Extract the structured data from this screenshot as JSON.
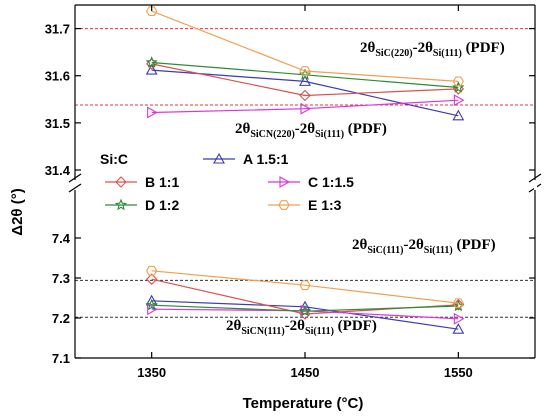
{
  "chart_data": {
    "type": "line",
    "xlabel": "Temperature (°C)",
    "ylabel": "Δ2θ (°)",
    "x": [
      1350,
      1450,
      1550
    ],
    "x_ticks": [
      "1350",
      "1450",
      "1550"
    ],
    "xlim": [
      1300,
      1600
    ],
    "broken_y_axis": true,
    "upper_ylim": [
      31.4,
      31.75
    ],
    "lower_ylim": [
      7.1,
      7.5
    ],
    "upper_y_ticks": [
      "31.4",
      "31.5",
      "31.6",
      "31.7"
    ],
    "lower_y_ticks": [
      "7.1",
      "7.2",
      "7.3",
      "7.4"
    ],
    "legend": {
      "title": "Si:C",
      "placement": "center-left"
    },
    "series": [
      {
        "name": "A 1.5:1",
        "color": "#3b3bb3",
        "marker": "triangle-up",
        "upper": [
          31.612,
          31.588,
          31.515
        ],
        "lower": [
          7.243,
          7.228,
          7.172
        ]
      },
      {
        "name": "B 1:1",
        "color": "#d9534f",
        "marker": "diamond",
        "upper": [
          31.625,
          31.558,
          31.572
        ],
        "lower": [
          7.297,
          7.21,
          7.233
        ]
      },
      {
        "name": "C 1:1.5",
        "color": "#dd33dd",
        "marker": "triangle-right",
        "upper": [
          31.522,
          31.53,
          31.548
        ],
        "lower": [
          7.222,
          7.218,
          7.198
        ]
      },
      {
        "name": "D 1:2",
        "color": "#2e8b3a",
        "marker": "star",
        "upper": [
          31.628,
          31.602,
          31.575
        ],
        "lower": [
          7.232,
          7.217,
          7.23
        ]
      },
      {
        "name": "E  1:3",
        "color": "#f0a050",
        "marker": "hexagon",
        "upper": [
          31.737,
          31.61,
          31.588
        ],
        "lower": [
          7.318,
          7.282,
          7.237
        ]
      }
    ],
    "reference_lines": [
      {
        "panel": "upper",
        "y": 31.7,
        "color": "#ee3333",
        "main": "2θ",
        "sub1": "SiC(220)",
        "mid": "-2θ",
        "sub2": "Si(111)",
        "end": " (PDF)"
      },
      {
        "panel": "upper",
        "y": 31.538,
        "color": "#ee3333",
        "main": "2θ",
        "sub1": "SiCN(220)",
        "mid": "-2θ",
        "sub2": "Si(111)",
        "end": " (PDF)"
      },
      {
        "panel": "lower",
        "y": 7.294,
        "color": "#333333",
        "main": "2θ",
        "sub1": "SiC(111)",
        "mid": "-2θ",
        "sub2": "Si(111)",
        "end": " (PDF)"
      },
      {
        "panel": "lower",
        "y": 7.202,
        "color": "#333333",
        "main": "2θ",
        "sub1": "SiCN(111)",
        "mid": "-2θ",
        "sub2": "Si(111)",
        "end": " (PDF)"
      }
    ]
  }
}
